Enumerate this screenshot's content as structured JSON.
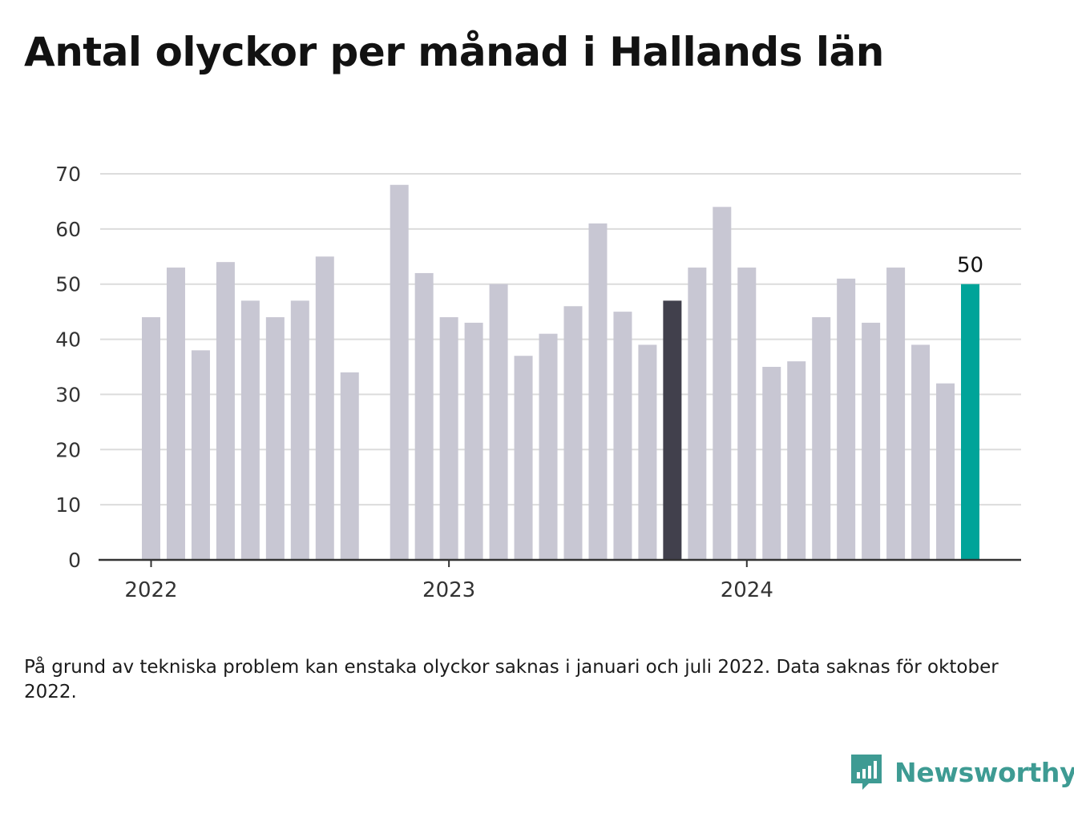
{
  "title": "Antal olyckor per månad i Hallands län",
  "note": "På grund av tekniska problem kan enstaka olyckor saknas i januari och juli 2022. Data saknas för oktober 2022.",
  "brand": {
    "name": "Newsworthy",
    "icon": "newsworthy-logo-icon",
    "color": "#3e9b93"
  },
  "colors": {
    "bar": "#c8c7d3",
    "highlight_prev_year": "#41404c",
    "latest": "#00a499",
    "grid": "#dcdcdc",
    "axis": "#333333"
  },
  "chart_data": {
    "type": "bar",
    "y_ticks": [
      "0",
      "10",
      "20",
      "30",
      "40",
      "50",
      "60",
      "70"
    ],
    "ylim": [
      0,
      70
    ],
    "x_tick_labels": [
      {
        "label": "2022",
        "at": "2022-01"
      },
      {
        "label": "2023",
        "at": "2023-01"
      },
      {
        "label": "2024",
        "at": "2024-01"
      }
    ],
    "grid": true,
    "categories": [
      "2022-01",
      "2022-02",
      "2022-03",
      "2022-04",
      "2022-05",
      "2022-06",
      "2022-07",
      "2022-08",
      "2022-09",
      "2022-10",
      "2022-11",
      "2022-12",
      "2023-01",
      "2023-02",
      "2023-03",
      "2023-04",
      "2023-05",
      "2023-06",
      "2023-07",
      "2023-08",
      "2023-09",
      "2023-10",
      "2023-11",
      "2023-12",
      "2024-01",
      "2024-02",
      "2024-03",
      "2024-04",
      "2024-05",
      "2024-06",
      "2024-07",
      "2024-08",
      "2024-09",
      "2024-10"
    ],
    "values": [
      44,
      53,
      38,
      54,
      47,
      44,
      47,
      55,
      34,
      null,
      68,
      52,
      44,
      43,
      50,
      37,
      41,
      46,
      61,
      45,
      39,
      47,
      53,
      64,
      53,
      35,
      36,
      44,
      51,
      43,
      53,
      39,
      32,
      50
    ],
    "highlights": {
      "2023-10": "highlight_prev_year",
      "2024-10": "latest"
    },
    "data_labels": [
      {
        "category": "2024-10",
        "label": "50"
      }
    ]
  }
}
